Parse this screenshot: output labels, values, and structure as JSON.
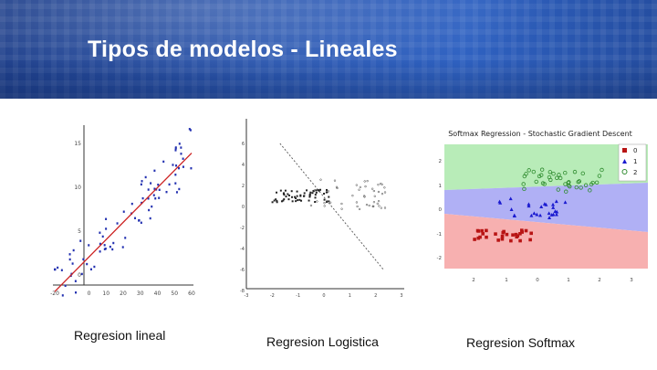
{
  "slide": {
    "title": "Tipos de modelos - Lineales"
  },
  "charts": [
    {
      "caption": "Regresion lineal",
      "chart_data": {
        "type": "scatter",
        "title": "",
        "x_ticks": [
          "-20",
          "0",
          "10",
          "20",
          "30",
          "40",
          "50",
          "60"
        ],
        "y_ticks": [
          "15",
          "10",
          "5",
          "0"
        ],
        "fit_line": {
          "x": [
            -20,
            60
          ],
          "y": [
            -2,
            13.8
          ]
        },
        "colors": {
          "points": "#2230b0",
          "fit": "#cc2222"
        }
      }
    },
    {
      "caption": "Regresion Logistica",
      "chart_data": {
        "type": "scatter",
        "title": "",
        "x_ticks": [
          "-3",
          "-2",
          "-1",
          "0",
          "1",
          "2",
          "3"
        ],
        "y_ticks": [
          "6",
          "4",
          "2",
          "0",
          "-2",
          "-4",
          "-6",
          "-8"
        ],
        "boundary": {
          "x": [
            -1.7,
            2.3
          ],
          "y": [
            6,
            -6
          ]
        },
        "colors": {
          "class_a": "#222222",
          "class_b": "#444444"
        }
      }
    },
    {
      "caption": "Regresion Softmax",
      "chart_data": {
        "type": "scatter",
        "title": "Softmax Regression - Stochastic Gradient Descent",
        "x_ticks": [
          "2",
          "1",
          "0",
          "1",
          "2",
          "3"
        ],
        "y_ticks": [
          "2",
          "1",
          "0",
          "-1",
          "-2"
        ],
        "legend": {
          "placement": "top-right",
          "entries": [
            "0",
            "1",
            "2"
          ]
        },
        "colors": {
          "class0": "#b81414",
          "class1": "#1a1ad0",
          "class2": "#2e8b2e",
          "region0": "#f7b0b0",
          "region1": "#b0b0f5",
          "region2": "#b8ecb8"
        }
      }
    }
  ]
}
